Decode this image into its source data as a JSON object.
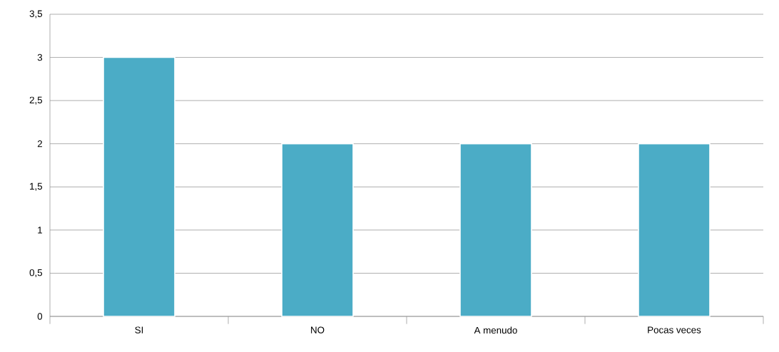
{
  "chart_data": {
    "type": "bar",
    "categories": [
      "SI",
      "NO",
      "A menudo",
      "Pocas veces"
    ],
    "values": [
      3,
      2,
      2,
      2
    ],
    "color": "#4bacc6",
    "ylim": [
      0,
      3.5
    ],
    "yticks": [
      0,
      {
        "value": 0.5,
        "label": "0,5"
      },
      1,
      {
        "value": 1.5,
        "label": "1,5"
      },
      2,
      {
        "value": 2.5,
        "label": "2,5"
      },
      3,
      {
        "value": 3.5,
        "label": "3,5"
      }
    ],
    "grid": "y"
  }
}
